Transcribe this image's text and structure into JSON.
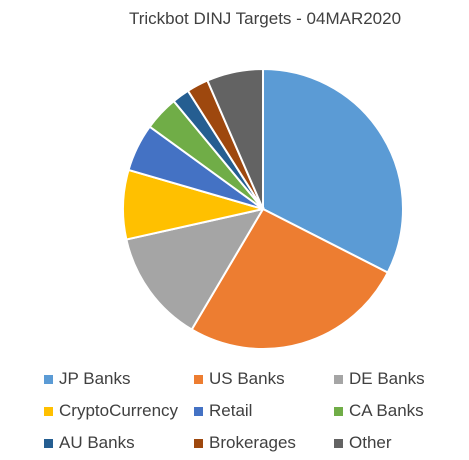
{
  "chart_data": {
    "type": "pie",
    "title": "Trickbot DINJ Targets - 04MAR2020",
    "legend_position": "bottom",
    "categories": [
      "JP Banks",
      "US Banks",
      "DE Banks",
      "CryptoCurrency",
      "Retail",
      "CA Banks",
      "AU Banks",
      "Brokerages",
      "Other"
    ],
    "values": [
      32.5,
      26.0,
      13.0,
      8.0,
      5.5,
      4.0,
      2.0,
      2.5,
      6.5
    ],
    "colors": [
      "#5b9bd5",
      "#ed7d31",
      "#a5a5a5",
      "#ffc000",
      "#4472c4",
      "#70ad47",
      "#255e91",
      "#9e480e",
      "#636363"
    ]
  }
}
